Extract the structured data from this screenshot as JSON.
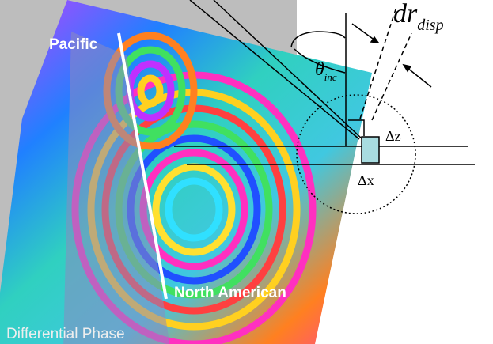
{
  "image_labels": {
    "plate_left": "Pacific",
    "plate_right": "North American",
    "caption": "Differential Phase"
  },
  "geometry_labels": {
    "displacement": {
      "symbol": "dr",
      "subscript": "disp"
    },
    "incidence": {
      "symbol": "θ",
      "subscript": "inc"
    },
    "dz": "Δz",
    "dx": "Δx"
  }
}
